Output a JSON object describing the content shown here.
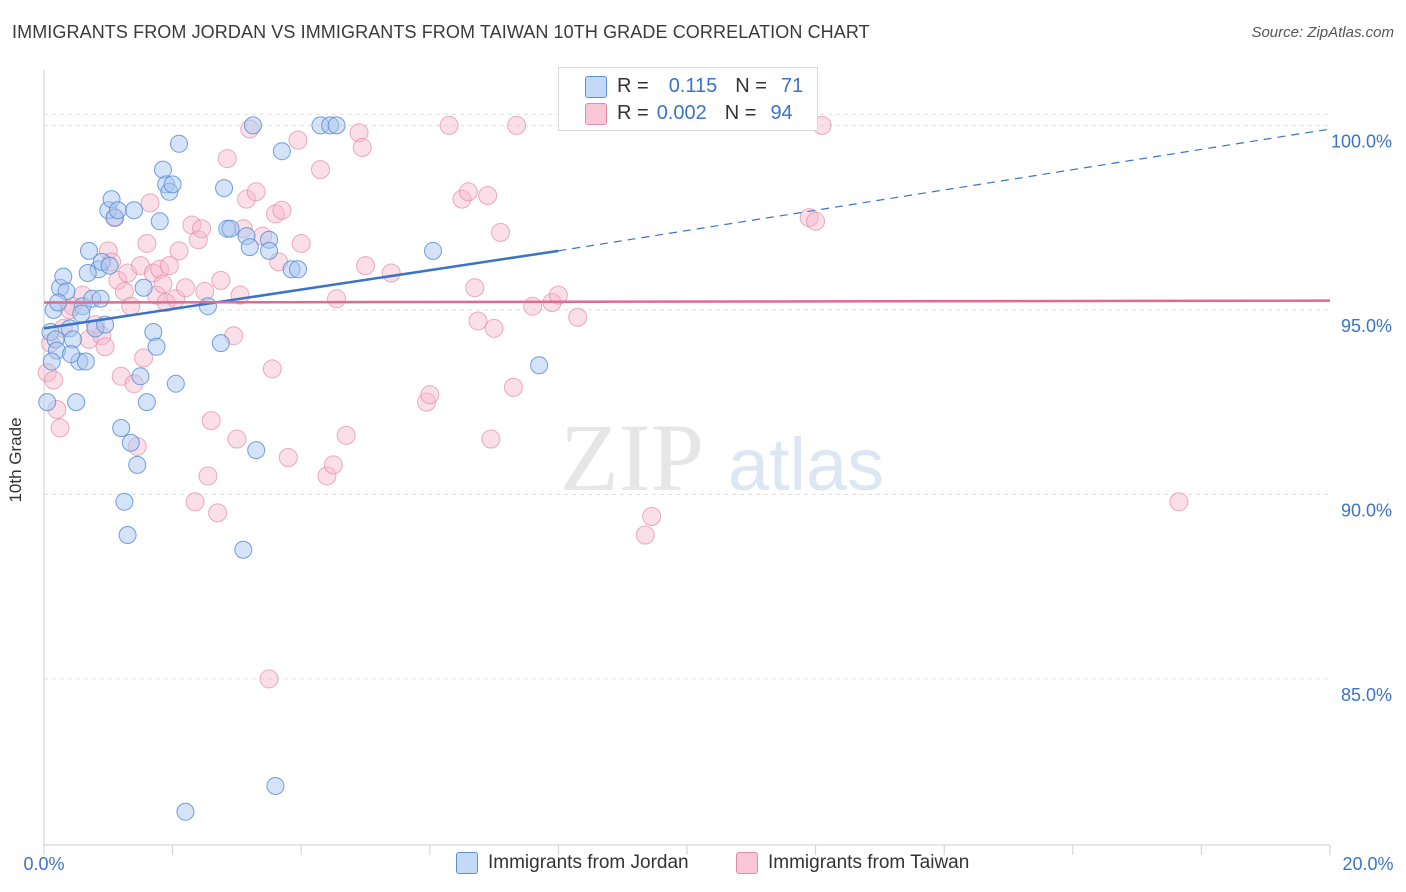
{
  "title": "IMMIGRANTS FROM JORDAN VS IMMIGRANTS FROM TAIWAN 10TH GRADE CORRELATION CHART",
  "source": "Source: ZipAtlas.com",
  "watermark": {
    "zip": "ZIP",
    "atlas": "atlas"
  },
  "legend_top": {
    "r_label": "R =",
    "n_label": "N =",
    "rows": [
      {
        "r": "0.115",
        "n": "71"
      },
      {
        "r": "0.002",
        "n": "94"
      }
    ]
  },
  "colors": {
    "jordan_fill": "#a9c8f0",
    "jordan_stroke": "#5b8fd6",
    "jordan_line": "#3b74c7",
    "taiwan_fill": "#f7b8cc",
    "taiwan_stroke": "#e38aa8",
    "taiwan_line": "#e06a92",
    "tick_label": "#3b74c7",
    "grid": "#dddddd"
  },
  "chart_data": {
    "type": "scatter",
    "title": "IMMIGRANTS FROM JORDAN VS IMMIGRANTS FROM TAIWAN 10TH GRADE CORRELATION CHART",
    "xlabel": "",
    "ylabel": "10th Grade",
    "xlim": [
      0,
      20
    ],
    "ylim": [
      80.5,
      101.5
    ],
    "x_tick_labels": [
      "0.0%",
      "20.0%"
    ],
    "y_ticks": [
      85,
      90,
      95,
      100
    ],
    "y_tick_labels": [
      "85.0%",
      "90.0%",
      "95.0%",
      "100.0%"
    ],
    "legend": [
      "Immigrants from Jordan",
      "Immigrants from Taiwan"
    ],
    "series": [
      {
        "name": "Immigrants from Jordan",
        "r": 0.115,
        "n": 71,
        "trend": {
          "x0": 0,
          "y0": 94.5,
          "x1": 8.0,
          "y1": 96.6,
          "dash_to_x": 20,
          "dash_to_y": 99.9
        },
        "points": [
          [
            0.05,
            92.5
          ],
          [
            0.1,
            94.4
          ],
          [
            0.15,
            95.0
          ],
          [
            0.18,
            94.2
          ],
          [
            0.2,
            93.9
          ],
          [
            0.25,
            95.6
          ],
          [
            0.3,
            95.9
          ],
          [
            0.35,
            95.5
          ],
          [
            0.4,
            94.5
          ],
          [
            0.45,
            94.2
          ],
          [
            0.5,
            92.5
          ],
          [
            0.55,
            93.6
          ],
          [
            0.6,
            95.1
          ],
          [
            0.65,
            93.6
          ],
          [
            0.7,
            96.6
          ],
          [
            0.75,
            95.3
          ],
          [
            0.8,
            94.5
          ],
          [
            0.85,
            96.1
          ],
          [
            0.9,
            96.3
          ],
          [
            0.95,
            94.6
          ],
          [
            1.0,
            97.7
          ],
          [
            1.05,
            98.0
          ],
          [
            1.1,
            97.5
          ],
          [
            1.15,
            97.7
          ],
          [
            1.2,
            91.8
          ],
          [
            1.25,
            89.8
          ],
          [
            1.3,
            88.9
          ],
          [
            1.35,
            91.4
          ],
          [
            1.4,
            97.7
          ],
          [
            1.45,
            90.8
          ],
          [
            1.5,
            93.2
          ],
          [
            1.55,
            95.6
          ],
          [
            1.6,
            92.5
          ],
          [
            1.7,
            94.4
          ],
          [
            1.75,
            94.0
          ],
          [
            1.8,
            97.4
          ],
          [
            1.85,
            98.8
          ],
          [
            1.9,
            98.4
          ],
          [
            1.95,
            98.2
          ],
          [
            2.0,
            98.4
          ],
          [
            2.05,
            93.0
          ],
          [
            2.1,
            99.5
          ],
          [
            2.2,
            81.4
          ],
          [
            2.55,
            95.1
          ],
          [
            2.75,
            94.1
          ],
          [
            2.8,
            98.3
          ],
          [
            2.85,
            97.2
          ],
          [
            2.9,
            97.2
          ],
          [
            3.1,
            88.5
          ],
          [
            3.15,
            97.0
          ],
          [
            3.2,
            96.7
          ],
          [
            3.3,
            91.2
          ],
          [
            3.5,
            96.9
          ],
          [
            3.5,
            96.6
          ],
          [
            3.6,
            82.1
          ],
          [
            3.7,
            99.3
          ],
          [
            3.85,
            96.1
          ],
          [
            3.95,
            96.1
          ],
          [
            4.3,
            100.0
          ],
          [
            4.45,
            100.0
          ],
          [
            4.55,
            100.0
          ],
          [
            6.05,
            96.6
          ],
          [
            7.7,
            93.5
          ],
          [
            0.12,
            93.6
          ],
          [
            0.22,
            95.2
          ],
          [
            0.42,
            93.8
          ],
          [
            0.58,
            94.9
          ],
          [
            0.68,
            96.0
          ],
          [
            0.88,
            95.3
          ],
          [
            1.02,
            96.2
          ],
          [
            3.25,
            100.0
          ]
        ]
      },
      {
        "name": "Immigrants from Taiwan",
        "r": 0.002,
        "n": 94,
        "trend": {
          "x0": 0,
          "y0": 95.2,
          "x1": 20,
          "y1": 95.25
        },
        "points": [
          [
            0.05,
            93.3
          ],
          [
            0.1,
            94.1
          ],
          [
            0.15,
            93.1
          ],
          [
            0.2,
            92.3
          ],
          [
            0.25,
            91.8
          ],
          [
            0.3,
            94.5
          ],
          [
            0.4,
            95.0
          ],
          [
            0.45,
            95.1
          ],
          [
            0.6,
            95.4
          ],
          [
            0.7,
            94.2
          ],
          [
            0.8,
            94.6
          ],
          [
            0.9,
            94.3
          ],
          [
            0.95,
            94.0
          ],
          [
            1.0,
            96.6
          ],
          [
            1.05,
            96.3
          ],
          [
            1.1,
            97.5
          ],
          [
            1.15,
            95.8
          ],
          [
            1.2,
            93.2
          ],
          [
            1.25,
            95.5
          ],
          [
            1.3,
            96.0
          ],
          [
            1.35,
            95.1
          ],
          [
            1.4,
            93.0
          ],
          [
            1.45,
            91.3
          ],
          [
            1.5,
            96.2
          ],
          [
            1.55,
            93.7
          ],
          [
            1.6,
            96.8
          ],
          [
            1.65,
            97.9
          ],
          [
            1.7,
            96.0
          ],
          [
            1.75,
            95.4
          ],
          [
            1.8,
            96.1
          ],
          [
            1.85,
            95.7
          ],
          [
            1.9,
            95.2
          ],
          [
            1.95,
            96.2
          ],
          [
            2.05,
            95.3
          ],
          [
            2.1,
            96.6
          ],
          [
            2.2,
            95.6
          ],
          [
            2.3,
            97.3
          ],
          [
            2.35,
            89.8
          ],
          [
            2.4,
            96.9
          ],
          [
            2.45,
            97.2
          ],
          [
            2.5,
            95.5
          ],
          [
            2.55,
            90.5
          ],
          [
            2.6,
            92.0
          ],
          [
            2.7,
            89.5
          ],
          [
            2.75,
            95.8
          ],
          [
            2.85,
            99.1
          ],
          [
            2.95,
            94.3
          ],
          [
            3.0,
            91.5
          ],
          [
            3.05,
            95.4
          ],
          [
            3.1,
            97.2
          ],
          [
            3.15,
            98.0
          ],
          [
            3.2,
            99.9
          ],
          [
            3.3,
            98.2
          ],
          [
            3.4,
            97.0
          ],
          [
            3.5,
            85.0
          ],
          [
            3.55,
            93.4
          ],
          [
            3.6,
            97.6
          ],
          [
            3.65,
            96.3
          ],
          [
            3.7,
            97.7
          ],
          [
            3.8,
            91.0
          ],
          [
            3.95,
            99.6
          ],
          [
            4.0,
            96.8
          ],
          [
            4.3,
            98.8
          ],
          [
            4.4,
            90.5
          ],
          [
            4.5,
            90.8
          ],
          [
            4.55,
            95.3
          ],
          [
            4.7,
            91.6
          ],
          [
            4.9,
            99.8
          ],
          [
            4.95,
            99.4
          ],
          [
            5.0,
            96.2
          ],
          [
            5.4,
            96.0
          ],
          [
            5.95,
            92.5
          ],
          [
            6.0,
            92.7
          ],
          [
            6.3,
            100.0
          ],
          [
            6.5,
            98.0
          ],
          [
            6.6,
            98.2
          ],
          [
            6.7,
            95.6
          ],
          [
            6.75,
            94.7
          ],
          [
            6.9,
            98.1
          ],
          [
            6.95,
            91.5
          ],
          [
            7.0,
            94.5
          ],
          [
            7.1,
            97.1
          ],
          [
            7.3,
            92.9
          ],
          [
            7.35,
            100.0
          ],
          [
            7.6,
            95.1
          ],
          [
            7.9,
            95.2
          ],
          [
            8.0,
            95.4
          ],
          [
            8.3,
            94.8
          ],
          [
            9.35,
            88.9
          ],
          [
            9.45,
            89.4
          ],
          [
            11.9,
            97.5
          ],
          [
            12.0,
            97.4
          ],
          [
            12.1,
            100.0
          ],
          [
            17.65,
            89.8
          ]
        ]
      }
    ]
  },
  "bottom_legend": [
    {
      "label": "Immigrants from Jordan"
    },
    {
      "label": "Immigrants from Taiwan"
    }
  ]
}
